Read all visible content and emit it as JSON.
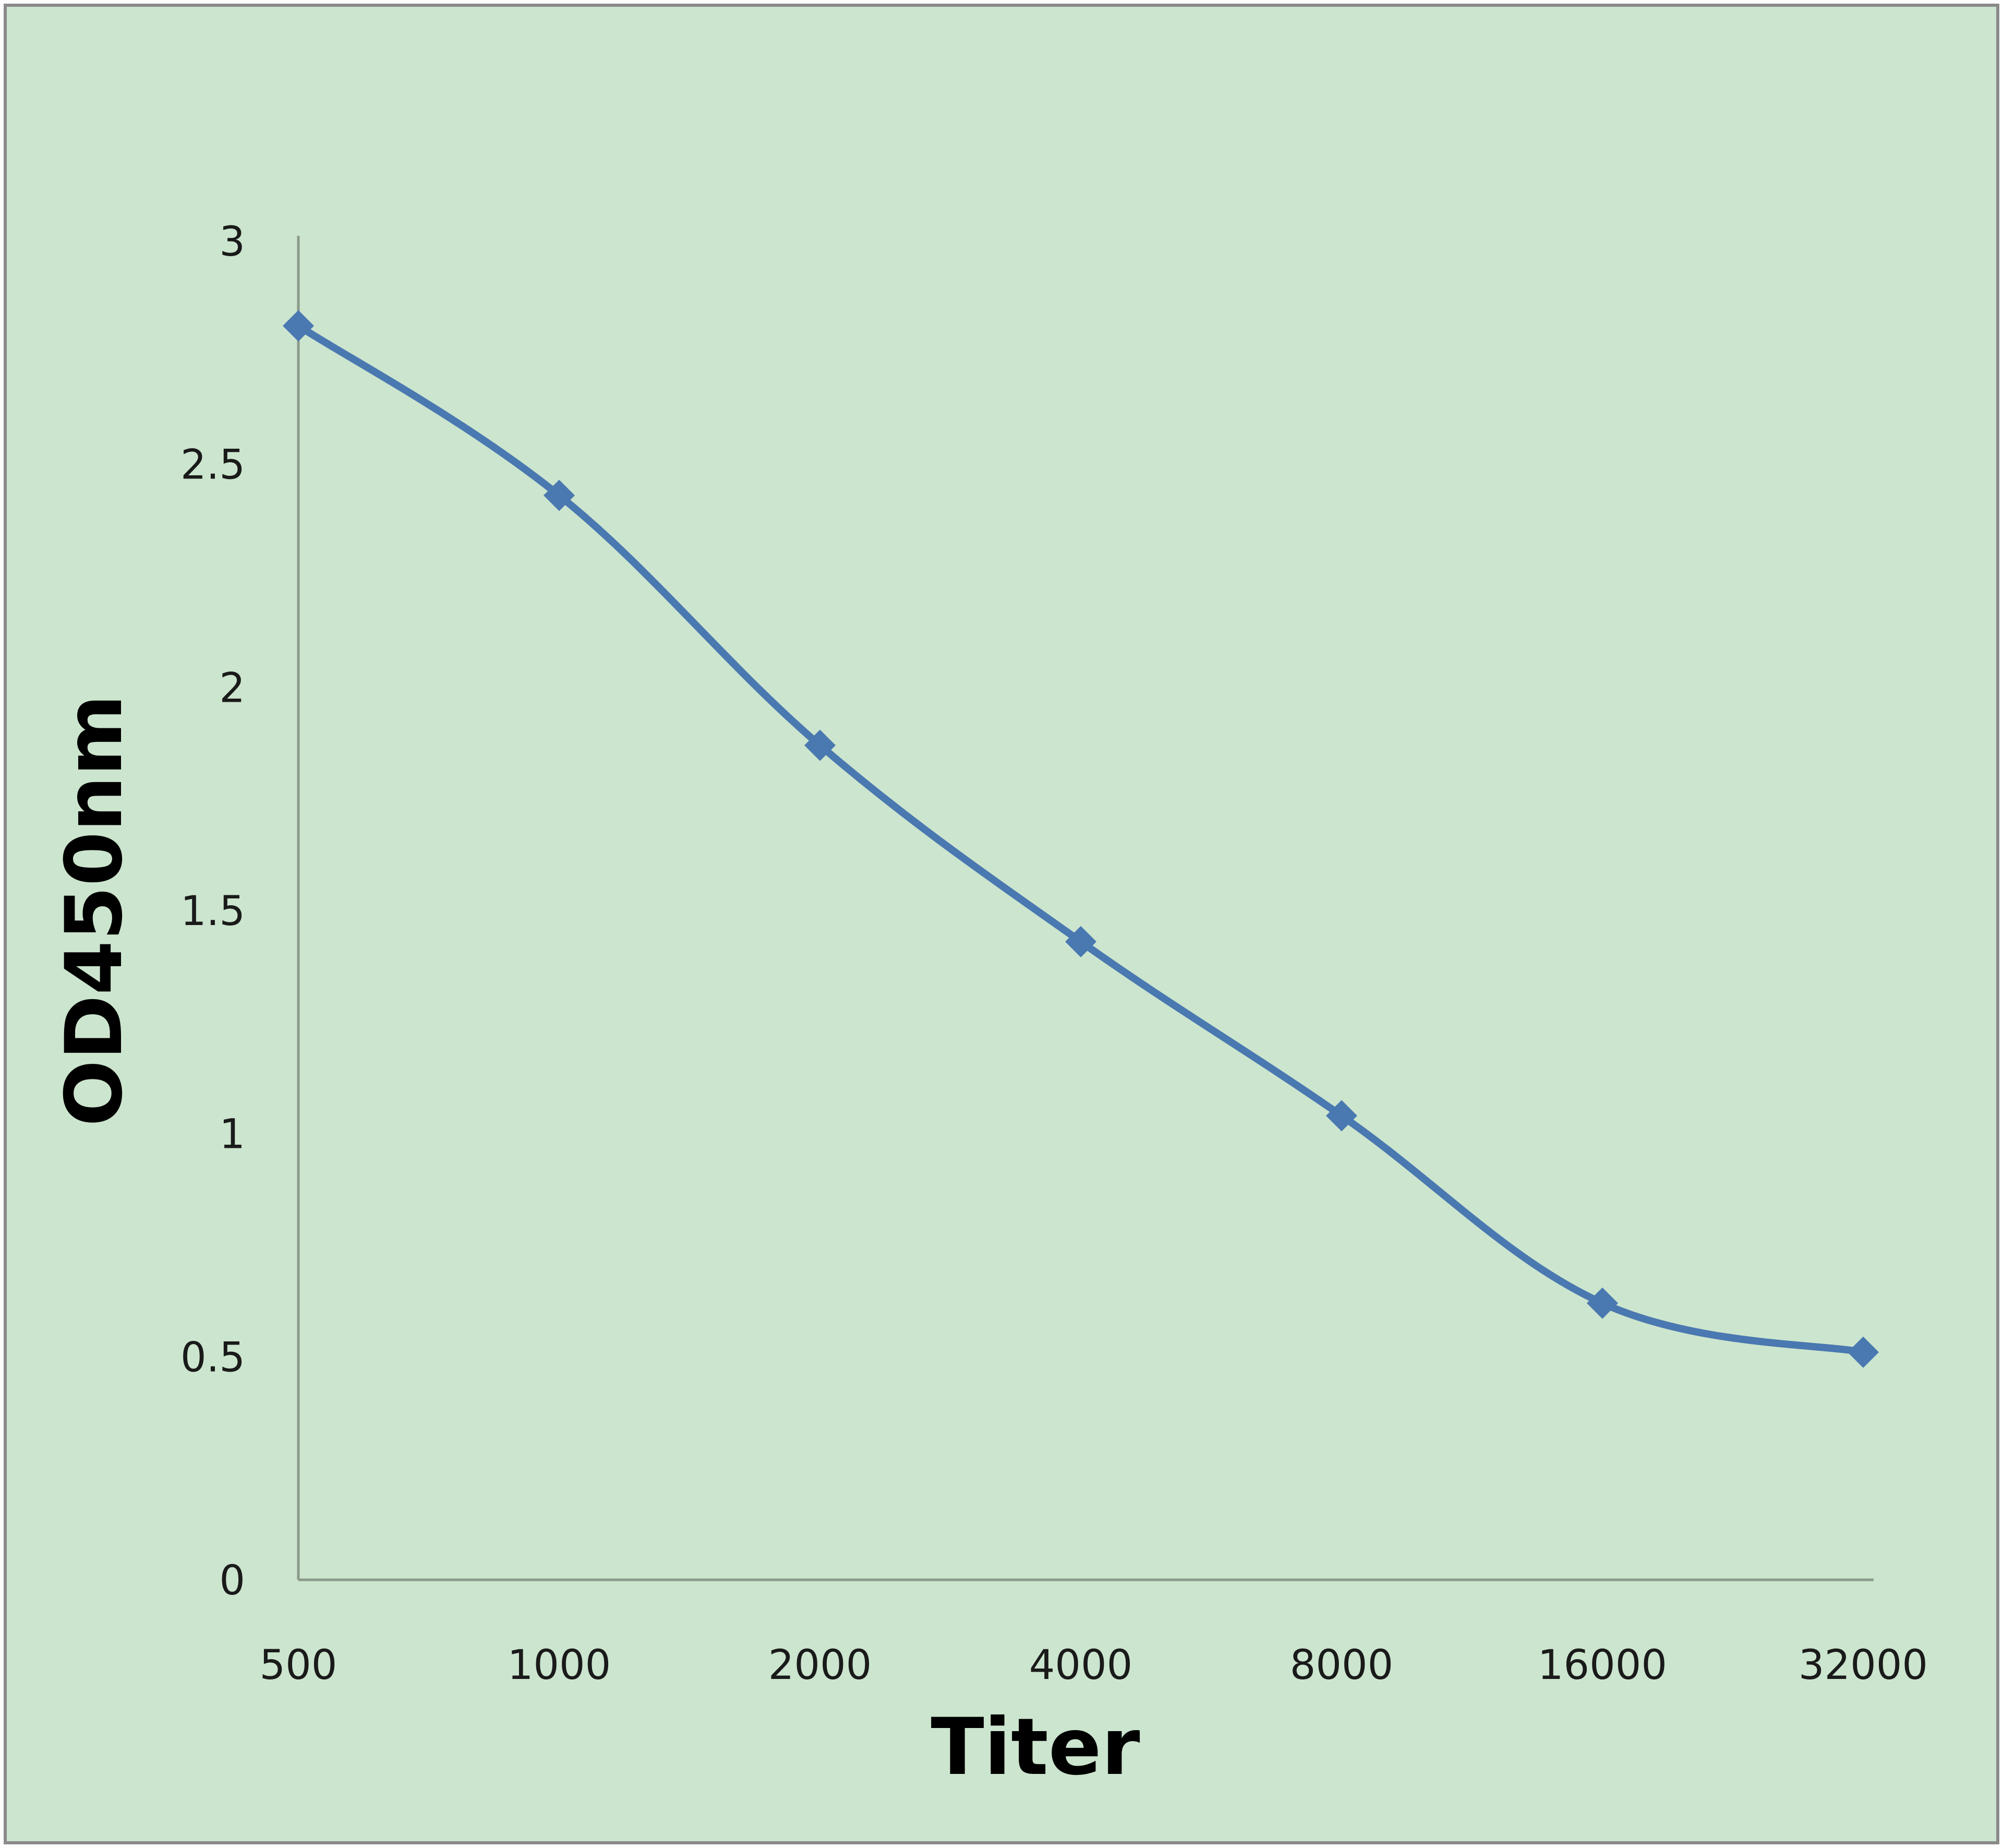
{
  "colors": {
    "background": "#cce5ce",
    "border": "#8a8a8a",
    "axis": "#8a9a8c",
    "series": "#4a78b0"
  },
  "chart_data": {
    "type": "line",
    "title": "",
    "xlabel": "Titer",
    "ylabel": "OD450nm",
    "categories": [
      "500",
      "1000",
      "2000",
      "4000",
      "8000",
      "16000",
      "32000"
    ],
    "series": [
      {
        "values": [
          2.81,
          2.43,
          1.87,
          1.43,
          1.04,
          0.62,
          0.51
        ]
      }
    ],
    "ylim": [
      0,
      3
    ],
    "yticks": [
      "0",
      "0.5",
      "1",
      "1.5",
      "2",
      "2.5",
      "3"
    ],
    "marker": "diamond",
    "smooth": true,
    "grid": false,
    "legend": "none"
  }
}
